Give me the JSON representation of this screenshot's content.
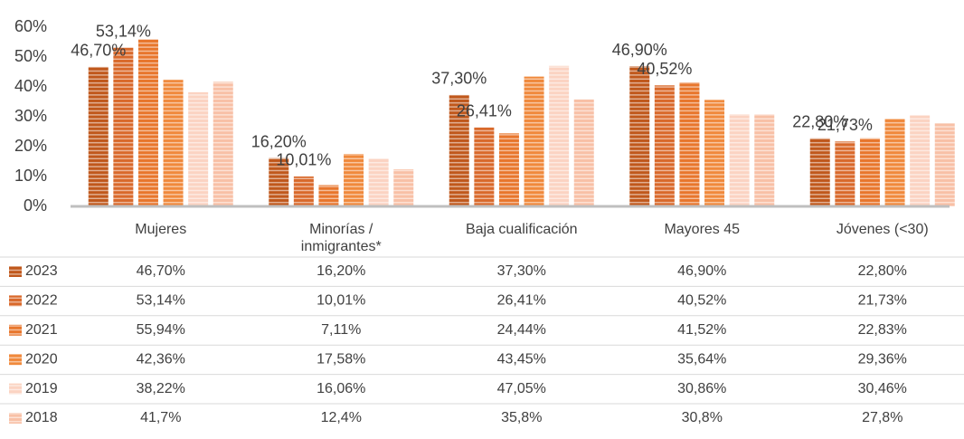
{
  "chart_data": {
    "type": "bar",
    "categories": [
      "Mujeres",
      "Minorías /\ninmigrantes*",
      "Baja cualificación",
      "Mayores 45",
      "Jóvenes (<30)"
    ],
    "series": [
      {
        "name": "2023",
        "color": "#c0581c",
        "values": [
          46.7,
          16.2,
          37.3,
          46.9,
          22.8
        ],
        "value_labels": [
          "46,70%",
          "16,20%",
          "37,30%",
          "46,90%",
          "22,80%"
        ]
      },
      {
        "name": "2022",
        "color": "#d9692b",
        "values": [
          53.14,
          10.01,
          26.41,
          40.52,
          21.73
        ],
        "value_labels": [
          "53,14%",
          "10,01%",
          "26,41%",
          "40,52%",
          "21,73%"
        ]
      },
      {
        "name": "2021",
        "color": "#e8762c",
        "values": [
          55.94,
          7.11,
          24.44,
          41.52,
          22.83
        ],
        "value_labels": [
          "55,94%",
          "7,11%",
          "24,44%",
          "41,52%",
          "22,83%"
        ]
      },
      {
        "name": "2020",
        "color": "#f0893c",
        "values": [
          42.36,
          17.58,
          43.45,
          35.64,
          29.36
        ],
        "value_labels": [
          "42,36%",
          "17,58%",
          "43,45%",
          "35,64%",
          "29,36%"
        ]
      },
      {
        "name": "2019",
        "color": "#fbd3c2",
        "values": [
          38.22,
          16.06,
          47.05,
          30.86,
          30.46
        ],
        "value_labels": [
          "38,22%",
          "16,06%",
          "47,05%",
          "30,86%",
          "30,46%"
        ]
      },
      {
        "name": "2018",
        "color": "#f8c0a6",
        "values": [
          41.7,
          12.4,
          35.8,
          30.8,
          27.8
        ],
        "value_labels": [
          "41,7%",
          "12,4%",
          "35,8%",
          "30,8%",
          "27,8%"
        ]
      }
    ],
    "labeled_series": [
      0,
      1
    ],
    "ylim": [
      0,
      60
    ],
    "yticks": [
      {
        "value": 0,
        "label": "0%"
      },
      {
        "value": 10,
        "label": "10%"
      },
      {
        "value": 20,
        "label": "20%"
      },
      {
        "value": 30,
        "label": "30%"
      },
      {
        "value": 40,
        "label": "40%"
      },
      {
        "value": 50,
        "label": "50%"
      },
      {
        "value": 60,
        "label": "60%"
      }
    ]
  }
}
